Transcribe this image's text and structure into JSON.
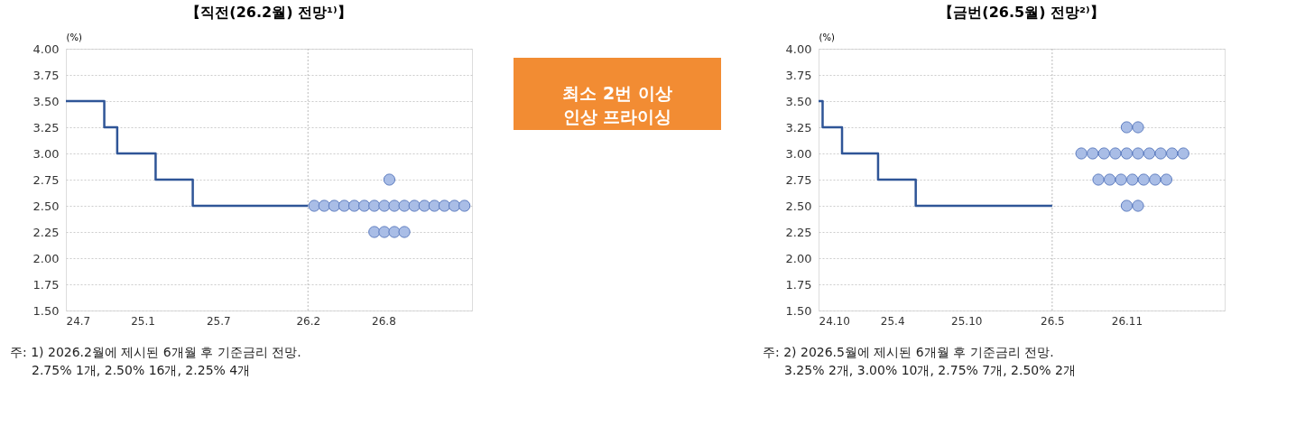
{
  "chart_data": [
    {
      "type": "line",
      "title": "【직전(26.2월) 전망¹⁾】",
      "ylabel": "(%)",
      "xlim": [
        "2024-07",
        "2027-03"
      ],
      "xticks": [
        {
          "value": "2024-07",
          "label": "24.7"
        },
        {
          "value": "2025-01",
          "label": "25.1"
        },
        {
          "value": "2025-07",
          "label": "25.7"
        },
        {
          "value": "2026-02",
          "label": "26.2"
        },
        {
          "value": "2026-08",
          "label": "26.8"
        }
      ],
      "ylim": [
        1.5,
        4.0
      ],
      "yticks": [
        {
          "value": 1.5,
          "label": "1.50"
        },
        {
          "value": 1.75,
          "label": "1.75"
        },
        {
          "value": 2.0,
          "label": "2.00"
        },
        {
          "value": 2.25,
          "label": "2.25"
        },
        {
          "value": 2.5,
          "label": "2.50"
        },
        {
          "value": 2.75,
          "label": "2.75"
        },
        {
          "value": 3.0,
          "label": "3.00"
        },
        {
          "value": 3.25,
          "label": "3.25"
        },
        {
          "value": 3.5,
          "label": "3.50"
        },
        {
          "value": 3.75,
          "label": "3.75"
        },
        {
          "value": 4.0,
          "label": "4.00"
        }
      ],
      "grid": "y",
      "ref_lines": [
        {
          "axis": "x",
          "value": "2026-02",
          "color": "#bbbbbb",
          "line_style": "dotted"
        }
      ],
      "series": [
        {
          "type": "step",
          "color": "#2f5597",
          "x": [
            "2024-07",
            "2024-10",
            "2024-11",
            "2025-02",
            "2025-05",
            "2026-02"
          ],
          "values": [
            3.5,
            3.25,
            3.0,
            2.75,
            2.5,
            2.5
          ]
        },
        {
          "type": "scatter",
          "marker": "circle",
          "color": "#a9bde6",
          "x": [
            "2026-08-15"
          ],
          "values": [
            2.75
          ]
        },
        {
          "type": "scatter",
          "marker": "circle",
          "color": "#a9bde6",
          "x": [
            "2026-02-16",
            "2026-03-12",
            "2026-04-05",
            "2026-04-29",
            "2026-05-23",
            "2026-06-16",
            "2026-07-10",
            "2026-08-03",
            "2026-08-27",
            "2026-09-20",
            "2026-10-14",
            "2026-11-07",
            "2026-12-01",
            "2026-12-25",
            "2027-01-18",
            "2027-02-11"
          ],
          "values": [
            2.5,
            2.5,
            2.5,
            2.5,
            2.5,
            2.5,
            2.5,
            2.5,
            2.5,
            2.5,
            2.5,
            2.5,
            2.5,
            2.5,
            2.5,
            2.5
          ]
        },
        {
          "type": "scatter",
          "marker": "circle",
          "color": "#a9bde6",
          "x": [
            "2026-07-10",
            "2026-08-03",
            "2026-08-27",
            "2026-09-20"
          ],
          "values": [
            2.25,
            2.25,
            2.25,
            2.25
          ]
        }
      ],
      "annotations": [
        "주: 1) 2026.2월에 제시된 6개월 후 기준금리 전망.",
        "2.75% 1개,  2.50% 16개,  2.25% 4개"
      ]
    },
    {
      "type": "other",
      "annotations": [
        "최소 2번 이상\n인상 프라이싱"
      ]
    },
    {
      "type": "line",
      "title": "【금번(26.5월) 전망²⁾】",
      "ylabel": "(%)",
      "xlim": [
        "2024-10",
        "2027-07"
      ],
      "xticks": [
        {
          "value": "2024-10",
          "label": "24.10"
        },
        {
          "value": "2025-04",
          "label": "25.4"
        },
        {
          "value": "2025-10",
          "label": "25.10"
        },
        {
          "value": "2026-05",
          "label": "26.5"
        },
        {
          "value": "2026-11",
          "label": "26.11"
        }
      ],
      "ylim": [
        1.5,
        4.0
      ],
      "yticks": [
        {
          "value": 1.5,
          "label": "1.50"
        },
        {
          "value": 1.75,
          "label": "1.75"
        },
        {
          "value": 2.0,
          "label": "2.00"
        },
        {
          "value": 2.25,
          "label": "2.25"
        },
        {
          "value": 2.5,
          "label": "2.50"
        },
        {
          "value": 2.75,
          "label": "2.75"
        },
        {
          "value": 3.0,
          "label": "3.00"
        },
        {
          "value": 3.25,
          "label": "3.25"
        },
        {
          "value": 3.5,
          "label": "3.50"
        },
        {
          "value": 3.75,
          "label": "3.75"
        },
        {
          "value": 4.0,
          "label": "4.00"
        }
      ],
      "grid": "y",
      "ref_lines": [
        {
          "axis": "x",
          "value": "2026-05",
          "color": "#bbbbbb",
          "line_style": "dotted"
        }
      ],
      "series": [
        {
          "type": "step",
          "color": "#2f5597",
          "x": [
            "2024-10",
            "2024-10-11",
            "2024-11-28",
            "2025-02-25",
            "2025-05-29",
            "2026-05"
          ],
          "values": [
            3.5,
            3.25,
            3.0,
            2.75,
            2.5,
            2.5
          ]
        },
        {
          "type": "scatter",
          "marker": "circle",
          "color": "#a9bde6",
          "x": [
            "2026-11-01",
            "2026-11-29"
          ],
          "values": [
            3.25,
            3.25
          ]
        },
        {
          "type": "scatter",
          "marker": "circle",
          "color": "#a9bde6",
          "x": [
            "2026-07-12",
            "2026-08-09",
            "2026-09-06",
            "2026-10-04",
            "2026-11-01",
            "2026-11-29",
            "2026-12-27",
            "2027-01-24",
            "2027-02-21",
            "2027-03-21"
          ],
          "values": [
            3.0,
            3.0,
            3.0,
            3.0,
            3.0,
            3.0,
            3.0,
            3.0,
            3.0,
            3.0
          ]
        },
        {
          "type": "scatter",
          "marker": "circle",
          "color": "#a9bde6",
          "x": [
            "2026-08-23",
            "2026-09-20",
            "2026-10-18",
            "2026-11-15",
            "2026-12-13",
            "2027-01-10",
            "2027-02-07"
          ],
          "values": [
            2.75,
            2.75,
            2.75,
            2.75,
            2.75,
            2.75,
            2.75
          ]
        },
        {
          "type": "scatter",
          "marker": "circle",
          "color": "#a9bde6",
          "x": [
            "2026-11-01",
            "2026-11-29"
          ],
          "values": [
            2.5,
            2.5
          ]
        }
      ],
      "annotations": [
        "주: 2) 2026.5월에 제시된 6개월 후 기준금리 전망.",
        "3.25% 2개,  3.00% 10개,  2.75% 7개,  2.50% 2개"
      ]
    }
  ]
}
